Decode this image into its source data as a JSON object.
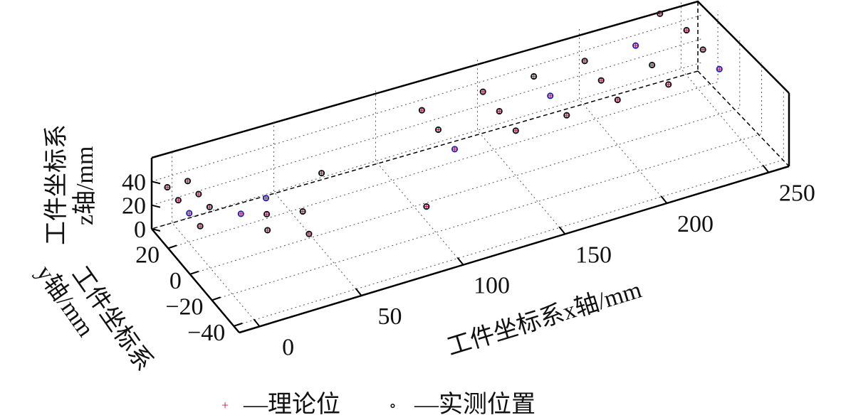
{
  "chart_data": {
    "type": "scatter",
    "projection": "3d",
    "xlabel": "工件坐标系x轴/mm",
    "ylabel_lines": [
      "工件坐标系",
      "y轴/mm"
    ],
    "zlabel_lines": [
      "工件坐标系",
      "z轴/mm"
    ],
    "x_ticks": [
      "0",
      "50",
      "100",
      "150",
      "200",
      "250"
    ],
    "y_ticks": [
      "20",
      "0",
      "−20",
      "−40"
    ],
    "z_ticks": [
      "0",
      "20",
      "40"
    ],
    "xlim": [
      -10,
      260
    ],
    "ylim": [
      -45,
      35
    ],
    "zlim": [
      0,
      60
    ],
    "grid": true,
    "legend_placement": "bottom",
    "series": [
      {
        "name": "—理论位",
        "marker": "+",
        "color": "#c0185a",
        "points": [
          [
            -5,
            30,
            38
          ],
          [
            -5,
            20,
            38
          ],
          [
            -5,
            10,
            38
          ],
          [
            -5,
            0,
            38
          ],
          [
            5,
            30,
            38
          ],
          [
            5,
            20,
            38
          ],
          [
            5,
            10,
            38
          ],
          [
            30,
            5,
            38
          ],
          [
            25,
            -5,
            38
          ],
          [
            20,
            -15,
            38
          ],
          [
            40,
            -10,
            38
          ],
          [
            35,
            -25,
            38
          ],
          [
            15,
            0,
            38
          ],
          [
            60,
            10,
            38
          ],
          [
            90,
            -30,
            38
          ],
          [
            120,
            30,
            38
          ],
          [
            120,
            15,
            38
          ],
          [
            120,
            0,
            38
          ],
          [
            150,
            30,
            38
          ],
          [
            150,
            15,
            38
          ],
          [
            150,
            0,
            38
          ],
          [
            175,
            30,
            38
          ],
          [
            175,
            15,
            38
          ],
          [
            175,
            0,
            38
          ],
          [
            200,
            30,
            38
          ],
          [
            200,
            15,
            38
          ],
          [
            200,
            0,
            38
          ],
          [
            225,
            30,
            38
          ],
          [
            225,
            15,
            38
          ],
          [
            225,
            0,
            38
          ],
          [
            250,
            30,
            38
          ],
          [
            250,
            15,
            38
          ],
          [
            250,
            0,
            38
          ],
          [
            245,
            45,
            38
          ]
        ]
      },
      {
        "name": "—实测位置",
        "marker": "o",
        "color": "#1a1a1a",
        "color_alt": "#2a2ab0",
        "points": [
          [
            -5,
            30,
            38
          ],
          [
            -5,
            20,
            38
          ],
          [
            -5,
            10,
            38
          ],
          [
            -5,
            0,
            38
          ],
          [
            5,
            30,
            38
          ],
          [
            5,
            20,
            38
          ],
          [
            5,
            10,
            38
          ],
          [
            30,
            5,
            38
          ],
          [
            25,
            -5,
            38
          ],
          [
            20,
            -15,
            38
          ],
          [
            40,
            -10,
            38
          ],
          [
            35,
            -25,
            38
          ],
          [
            15,
            0,
            38
          ],
          [
            60,
            10,
            38
          ],
          [
            90,
            -30,
            38
          ],
          [
            120,
            30,
            38
          ],
          [
            120,
            15,
            38
          ],
          [
            120,
            0,
            38
          ],
          [
            150,
            30,
            38
          ],
          [
            150,
            15,
            38
          ],
          [
            150,
            0,
            38
          ],
          [
            175,
            30,
            38
          ],
          [
            175,
            15,
            38
          ],
          [
            175,
            0,
            38
          ],
          [
            200,
            30,
            38
          ],
          [
            200,
            15,
            38
          ],
          [
            200,
            0,
            38
          ],
          [
            225,
            30,
            38
          ],
          [
            225,
            15,
            38
          ],
          [
            225,
            0,
            38
          ],
          [
            250,
            30,
            38
          ],
          [
            250,
            15,
            38
          ],
          [
            250,
            0,
            38
          ],
          [
            245,
            45,
            38
          ]
        ]
      }
    ]
  },
  "legend": {
    "theory_symbol": "+",
    "theory_label": "—理论位",
    "measured_symbol": "∘",
    "measured_label": "—实测位置"
  }
}
